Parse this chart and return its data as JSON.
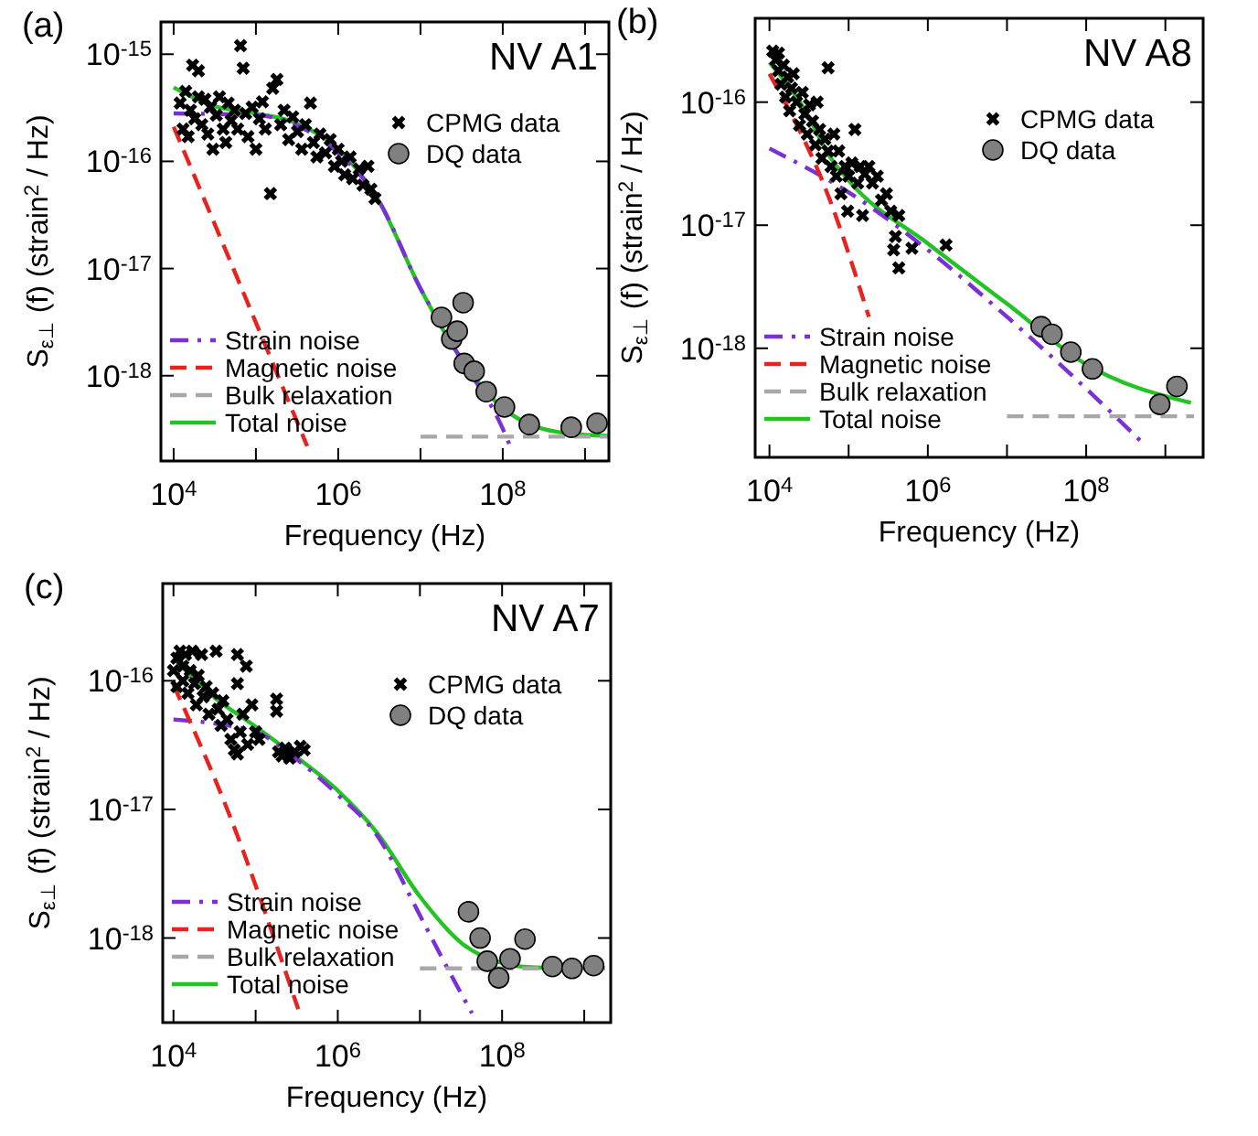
{
  "chart_data": [
    {
      "type": "scatter",
      "title": "NV A1",
      "annotations": [
        "(a)"
      ],
      "xlabel": "Frequency (Hz)",
      "ylabel": "S$_{ε⊥}$(f)  (strain$^{2}$ / Hz)",
      "log": "xy",
      "legend": "bottom left",
      "xlim": [
        7000,
        1950000000.0
      ],
      "ylim": [
        1.6e-19,
        2e-15
      ],
      "xticks": [
        {
          "value": 10000,
          "label": "10$^{4}$"
        },
        {
          "value": 100000,
          "label": null
        },
        {
          "value": 1000000,
          "label": "10$^{6}$"
        },
        {
          "value": 10000000,
          "label": null
        },
        {
          "value": 100000000,
          "label": "10$^{8}$"
        },
        {
          "value": 1000000000,
          "label": null
        }
      ],
      "yticks": [
        {
          "value": 1e-18,
          "label": "10$^{-18}$"
        },
        {
          "value": 1e-17,
          "label": "10$^{-17}$"
        },
        {
          "value": 1e-16,
          "label": "10$^{-16}$"
        },
        {
          "value": 1e-15,
          "label": "10$^{-15}$"
        }
      ],
      "series": [
        {
          "name": "CPMG data",
          "type": "scatter",
          "marker": "cross",
          "color": "#000000",
          "x": [
            12000,
            13000,
            14000,
            15000,
            16000,
            17000,
            18000,
            20000,
            20000,
            22000,
            24000,
            26000,
            28000,
            30000,
            33000,
            36000,
            40000,
            43000,
            46000,
            50000,
            55000,
            60000,
            65000,
            70000,
            75000,
            80000,
            90000,
            100000,
            110000,
            120000,
            130000,
            150000,
            160000,
            180000,
            200000,
            220000,
            250000,
            280000,
            320000,
            360000,
            400000,
            460000,
            500000,
            550000,
            600000,
            700000,
            800000,
            900000,
            1000000,
            1100000,
            1200000,
            1400000,
            1500000,
            1800000,
            2000000,
            2300000,
            2500000,
            2800000
          ],
          "values": [
            3.5e-16,
            2e-16,
            4.5e-16,
            1.7e-16,
            3e-16,
            7.9e-16,
            2.5e-16,
            7e-16,
            4e-16,
            2.2e-16,
            3.8e-16,
            1.8e-16,
            3.2e-16,
            1.3e-16,
            2.7e-16,
            4e-16,
            2e-16,
            1.5e-16,
            3.5e-16,
            2.4e-16,
            3e-16,
            2e-16,
            1.2e-15,
            7.4e-16,
            2.8e-16,
            1.7e-16,
            3.2e-16,
            1.3e-16,
            2.5e-16,
            3.6e-16,
            2e-16,
            5e-17,
            4.8e-16,
            5.8e-16,
            2.2e-16,
            3e-16,
            1.6e-16,
            2.6e-16,
            1.9e-16,
            1.3e-16,
            2.2e-16,
            3.5e-16,
            1.5e-16,
            1.1e-16,
            1.8e-16,
            1.2e-16,
            1.6e-16,
            9e-17,
            1.3e-16,
            1e-16,
            7.5e-17,
            1.1e-16,
            6.9e-17,
            8.5e-17,
            6e-17,
            9e-17,
            5.5e-17,
            4.5e-17
          ]
        },
        {
          "name": "DQ data",
          "type": "scatter",
          "marker": "circle",
          "color": "#808080",
          "x": [
            18000000,
            24000000,
            28000000,
            33000000,
            34000000,
            45000000,
            63000000,
            105000000,
            210000000,
            680000000,
            1400000000
          ],
          "values": [
            3.5e-18,
            2.2e-18,
            2.6e-18,
            4.8e-18,
            1.3e-18,
            1.1e-18,
            7.1e-19,
            5.1e-19,
            3.5e-19,
            3.3e-19,
            3.6e-19
          ]
        },
        {
          "name": "Strain noise",
          "type": "line",
          "line_style": "dashdot",
          "color": "#7b2fd6",
          "x": [
            10000,
            100000,
            300000,
            1000000,
            3000000,
            10000000,
            30000000,
            100000000,
            120000000
          ],
          "values": [
            2.8e-16,
            2.7e-16,
            2.2e-16,
            1.2e-16,
            4.5e-17,
            6.5e-18,
            1.5e-18,
            3.2e-19,
            2.3e-19
          ]
        },
        {
          "name": "Magnetic noise",
          "type": "line",
          "line_style": "dashed",
          "color": "#e8231f",
          "x": [
            10000,
            60000,
            420000
          ],
          "values": [
            2.1e-16,
            8e-18,
            2.2e-19
          ]
        },
        {
          "name": "Bulk relaxation",
          "type": "line",
          "line_style": "dashed",
          "color": "#a8a8a8",
          "x": [
            10000000,
            1900000000
          ],
          "values": [
            2.7e-19,
            2.7e-19
          ]
        },
        {
          "name": "Total noise",
          "type": "line",
          "line_style": "solid",
          "color": "#22c322",
          "x": [
            10000,
            30000,
            100000,
            300000,
            1000000,
            3000000,
            10000000,
            30000000,
            100000000,
            300000000,
            1000000000,
            1900000000
          ],
          "values": [
            4.9e-16,
            3.3e-16,
            2.8e-16,
            2.3e-16,
            1.3e-16,
            4.5e-17,
            6.5e-18,
            1.5e-18,
            5e-19,
            3.2e-19,
            2.8e-19,
            2.75e-19
          ]
        }
      ]
    },
    {
      "type": "scatter",
      "title": "NV A8",
      "annotations": [
        "(b)"
      ],
      "xlabel": "Frequency (Hz)",
      "ylabel": "S$_{ε⊥}$(f)  (strain$^{2}$ / Hz)",
      "log": "xy",
      "legend": "bottom left",
      "xlim": [
        6600,
        3000000000.0
      ],
      "ylim": [
        1.3e-19,
        4.8e-16
      ],
      "xticks": [
        {
          "value": 10000,
          "label": "10$^{4}$"
        },
        {
          "value": 100000,
          "label": null
        },
        {
          "value": 1000000,
          "label": "10$^{6}$"
        },
        {
          "value": 10000000,
          "label": null
        },
        {
          "value": 100000000,
          "label": "10$^{8}$"
        },
        {
          "value": 1000000000,
          "label": null
        }
      ],
      "yticks": [
        {
          "value": 1e-18,
          "label": "10$^{-18}$"
        },
        {
          "value": 1e-17,
          "label": "10$^{-17}$"
        },
        {
          "value": 1e-16,
          "label": "10$^{-16}$"
        }
      ],
      "series": [
        {
          "name": "CPMG data",
          "type": "scatter",
          "marker": "cross",
          "color": "#000000",
          "x": [
            11000,
            12000,
            13000,
            13000,
            14000,
            15000,
            16000,
            17000,
            18000,
            19000,
            20000,
            22000,
            24000,
            26000,
            28000,
            30000,
            32000,
            35000,
            38000,
            40000,
            43000,
            46000,
            50000,
            55000,
            55000,
            60000,
            65000,
            70000,
            75000,
            80000,
            90000,
            97000,
            100000,
            110000,
            120000,
            130000,
            140000,
            150000,
            160000,
            180000,
            200000,
            230000,
            260000,
            300000,
            340000,
            370000,
            390000,
            430000,
            430000,
            630000,
            1700000
          ],
          "values": [
            2.6e-16,
            2.2e-16,
            1.8e-16,
            2.5e-16,
            1.4e-16,
            2e-16,
            1.1e-16,
            1.6e-16,
            8.5e-17,
            1.3e-16,
            1.7e-16,
            1e-16,
            6.5e-17,
            1.2e-16,
            8e-17,
            5.5e-17,
            9.5e-17,
            7e-17,
            4.5e-17,
            1e-16,
            6e-17,
            3.5e-17,
            5e-17,
            1.9e-16,
            4e-17,
            3e-17,
            5.5e-17,
            2.5e-17,
            4e-17,
            1.8e-17,
            3e-17,
            1.3e-17,
            2.5e-17,
            3.2e-17,
            6e-17,
            2.2e-17,
            3e-17,
            1.2e-17,
            2.6e-17,
            3e-17,
            2.2e-17,
            2.5e-17,
            1.6e-17,
            1.8e-17,
            1.3e-17,
            6.3e-18,
            8.1e-18,
            4.5e-18,
            1.2e-17,
            6.5e-18,
            6.9e-18
          ]
        },
        {
          "name": "DQ data",
          "type": "scatter",
          "marker": "circle",
          "color": "#808080",
          "x": [
            27000000,
            37000000,
            64000000,
            120000000,
            850000000,
            1400000000
          ],
          "values": [
            1.5e-18,
            1.3e-18,
            9.3e-19,
            6.8e-19,
            3.5e-19,
            4.9e-19
          ]
        },
        {
          "name": "Strain noise",
          "type": "line",
          "line_style": "dashdot",
          "color": "#7b2fd6",
          "x": [
            10000,
            107000,
            1000000,
            10000000,
            100000000,
            570000000
          ],
          "values": [
            4.2e-17,
            1.8e-17,
            6.3e-18,
            1.8e-18,
            4.7e-19,
            1.6e-19
          ]
        },
        {
          "name": "Magnetic noise",
          "type": "line",
          "line_style": "dashed",
          "color": "#e8231f",
          "x": [
            10000,
            58000,
            180000
          ],
          "values": [
            1.7e-16,
            1.6e-17,
            1.8e-18
          ]
        },
        {
          "name": "Bulk relaxation",
          "type": "line",
          "line_style": "dashed",
          "color": "#a8a8a8",
          "x": [
            10000000,
            2300000000
          ],
          "values": [
            2.8e-19,
            2.8e-19
          ]
        },
        {
          "name": "Total noise",
          "type": "line",
          "line_style": "solid",
          "color": "#22c322",
          "x": [
            10000,
            27000,
            58000,
            107000,
            1000000,
            10000000,
            100000000,
            2100000000
          ],
          "values": [
            2.1e-16,
            9e-17,
            3.6e-17,
            2.2e-17,
            7.1e-18,
            2.3e-18,
            7.4e-19,
            3.6e-19
          ]
        }
      ]
    },
    {
      "type": "scatter",
      "title": "NV A7",
      "annotations": [
        "(c)"
      ],
      "xlabel": "Frequency (Hz)",
      "ylabel": "S$_{ε⊥}$(f)  (strain$^{2}$ / Hz)",
      "log": "xy",
      "legend": "bottom left",
      "xlim": [
        7400,
        2100000000.0
      ],
      "ylim": [
        2.2e-19,
        5.7e-16
      ],
      "xticks": [
        {
          "value": 10000,
          "label": "10$^{4}$"
        },
        {
          "value": 100000,
          "label": null
        },
        {
          "value": 1000000,
          "label": "10$^{6}$"
        },
        {
          "value": 10000000,
          "label": null
        },
        {
          "value": 100000000,
          "label": "10$^{8}$"
        },
        {
          "value": 1000000000,
          "label": null
        }
      ],
      "yticks": [
        {
          "value": 1e-18,
          "label": "10$^{-18}$"
        },
        {
          "value": 1e-17,
          "label": "10$^{-17}$"
        },
        {
          "value": 1e-16,
          "label": "10$^{-16}$"
        }
      ],
      "series": [
        {
          "name": "CPMG data",
          "type": "scatter",
          "marker": "cross",
          "color": "#000000",
          "x": [
            10000,
            11000,
            11000,
            12000,
            13000,
            13000,
            14000,
            15000,
            16000,
            17000,
            18000,
            19000,
            20000,
            22000,
            23000,
            25000,
            27000,
            30000,
            33000,
            35000,
            38000,
            40000,
            45000,
            50000,
            55000,
            60000,
            60000,
            60000,
            65000,
            70000,
            77000,
            80000,
            90000,
            100000,
            110000,
            180000,
            180000,
            190000,
            210000,
            230000,
            260000,
            300000,
            350000,
            390000
          ],
          "values": [
            1.2e-16,
            1.5e-16,
            9e-17,
            1.7e-16,
            1.3e-16,
            1e-16,
            1.6e-16,
            8e-17,
            1.2e-16,
            1.7e-16,
            9.5e-17,
            6.5e-17,
            1.1e-16,
            1.6e-16,
            7.5e-17,
            9e-17,
            5.5e-17,
            8e-17,
            1.7e-16,
            6e-17,
            4.5e-17,
            7e-17,
            5e-17,
            3.5e-17,
            2.9e-17,
            1.6e-16,
            9.5e-17,
            2.7e-17,
            4e-17,
            5.5e-17,
            1.3e-16,
            3.2e-17,
            6.5e-17,
            4e-17,
            3.5e-17,
            7.2e-17,
            5.8e-17,
            2.8e-17,
            2.6e-17,
            3e-17,
            2.5e-17,
            2.8e-17,
            3.1e-17,
            2.9e-17
          ]
        },
        {
          "name": "DQ data",
          "type": "scatter",
          "marker": "circle",
          "color": "#808080",
          "x": [
            39000000,
            54000000,
            66000000,
            91000000,
            125000000,
            190000000,
            410000000,
            710000000,
            1300000000
          ],
          "values": [
            1.6e-18,
            1e-18,
            6.6e-19,
            4.9e-19,
            6.9e-19,
            9.8e-19,
            6e-19,
            5.8e-19,
            6.1e-19
          ]
        },
        {
          "name": "Strain noise",
          "type": "line",
          "line_style": "dashdot",
          "color": "#7b2fd6",
          "x": [
            10000,
            100000,
            280000,
            1000000,
            3000000,
            10000000,
            20000000,
            43000000
          ],
          "values": [
            5e-17,
            4e-17,
            2.6e-17,
            1.3e-17,
            6.3e-18,
            1.5e-18,
            6.4e-19,
            2.6e-19
          ]
        },
        {
          "name": "Magnetic noise",
          "type": "line",
          "line_style": "dashed",
          "color": "#e8231f",
          "x": [
            10000,
            46000,
            330000
          ],
          "values": [
            9.3e-17,
            9.7e-18,
            2.8e-19
          ]
        },
        {
          "name": "Bulk relaxation",
          "type": "line",
          "line_style": "dashed",
          "color": "#a8a8a8",
          "x": [
            10000000,
            1800000000
          ],
          "values": [
            5.8e-19,
            5.8e-19
          ]
        },
        {
          "name": "Total noise",
          "type": "line",
          "line_style": "solid",
          "color": "#22c322",
          "x": [
            10000,
            30000,
            100000,
            280000,
            1000000,
            3000000,
            10000000,
            33000000,
            100000000,
            260000000,
            1800000000
          ],
          "values": [
            1.5e-16,
            7.6e-17,
            4.4e-17,
            2.7e-17,
            1.4e-17,
            6.6e-18,
            2.1e-18,
            9e-19,
            6.4e-19,
            5.9e-19,
            5.8e-19
          ]
        }
      ]
    }
  ]
}
